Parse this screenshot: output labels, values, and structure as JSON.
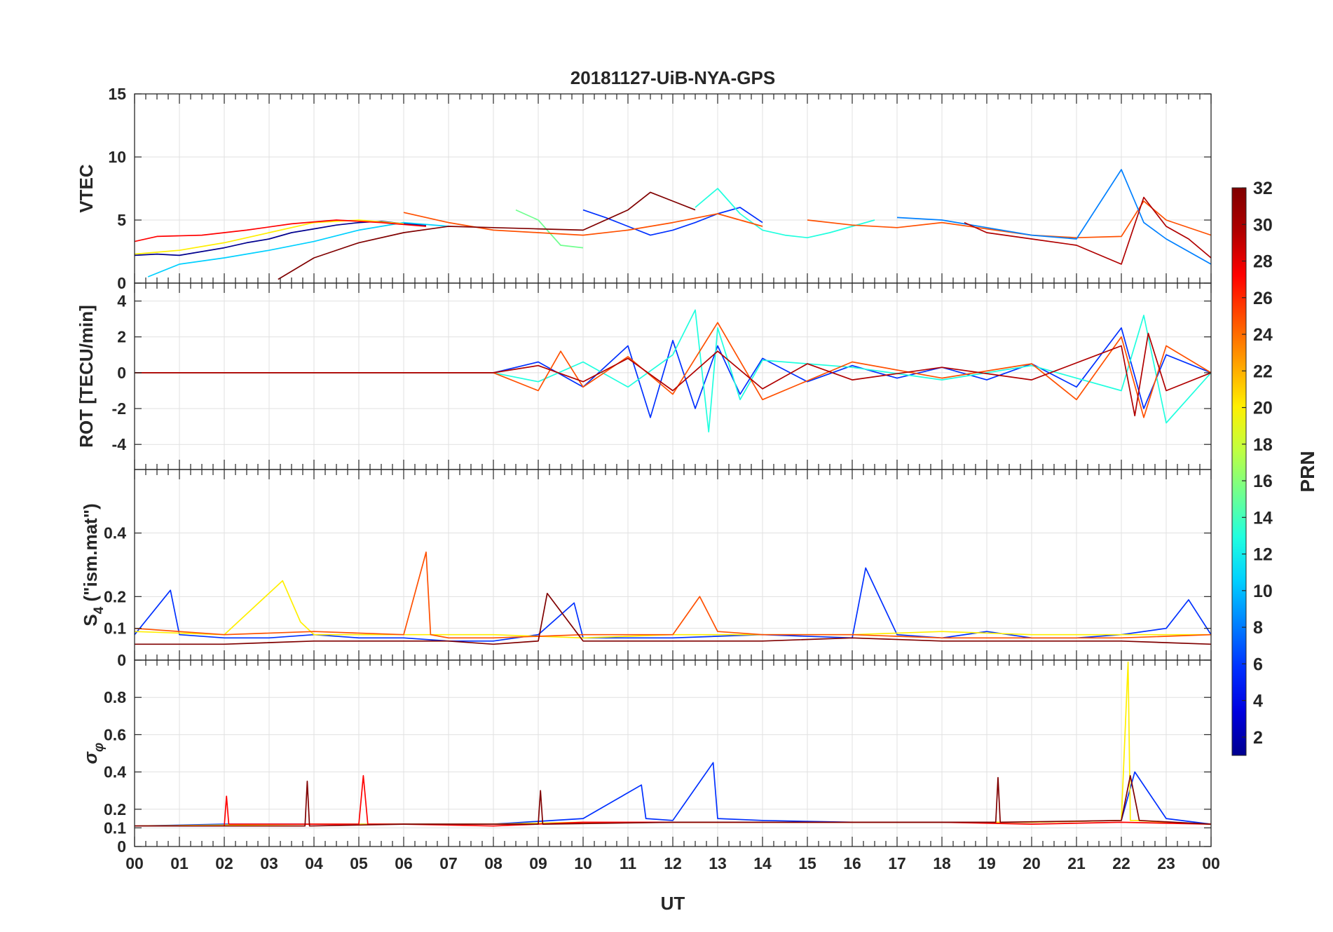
{
  "chart_data": {
    "type": "line",
    "title": "20181127-UiB-NYA-GPS",
    "xlabel": "UT",
    "x_tick_labels": [
      "00",
      "01",
      "02",
      "03",
      "04",
      "05",
      "06",
      "07",
      "08",
      "09",
      "10",
      "11",
      "12",
      "13",
      "14",
      "15",
      "16",
      "17",
      "18",
      "19",
      "20",
      "21",
      "22",
      "23",
      "00"
    ],
    "xlim": [
      0,
      24
    ],
    "grid": true,
    "colorbar": {
      "label": "PRN",
      "range": [
        1,
        32
      ],
      "ticks": [
        "2",
        "4",
        "6",
        "8",
        "10",
        "12",
        "14",
        "16",
        "18",
        "20",
        "22",
        "24",
        "26",
        "28",
        "30",
        "32"
      ],
      "colormap": "jet",
      "colors": [
        "#00008f",
        "#0000df",
        "#0030ff",
        "#0080ff",
        "#00d0ff",
        "#20ffdf",
        "#70ff8f",
        "#c0ff40",
        "#ffef00",
        "#ffa000",
        "#ff5000",
        "#ff0000",
        "#b00000",
        "#800000"
      ]
    },
    "subplots": [
      {
        "name": "vtec",
        "ylabel": "VTEC",
        "ylim": [
          0,
          15
        ],
        "yticks": [
          0,
          5,
          10,
          15
        ],
        "ytick_labels": [
          "0",
          "5",
          "10",
          "15"
        ],
        "series": [
          {
            "prn": 2,
            "x": [
              0,
              0.5,
              1.0,
              1.5,
              2.0,
              2.5,
              3.0,
              3.5,
              4.0,
              4.5,
              5.0,
              5.5,
              6.0,
              6.5
            ],
            "y": [
              2.2,
              2.3,
              2.2,
              2.5,
              2.8,
              3.2,
              3.5,
              4.0,
              4.3,
              4.6,
              4.8,
              4.9,
              4.7,
              4.6
            ]
          },
          {
            "prn": 5,
            "x": [
              10.0,
              10.5,
              11.0,
              11.5,
              12.0,
              12.5,
              13.0,
              13.5,
              14.0
            ],
            "y": [
              5.8,
              5.2,
              4.5,
              3.8,
              4.2,
              4.8,
              5.5,
              6.0,
              4.8
            ]
          },
          {
            "prn": 10,
            "x": [
              0.3,
              1.0,
              2.0,
              3.0,
              4.0,
              5.0,
              6.0,
              7.0
            ],
            "y": [
              0.5,
              1.5,
              2.0,
              2.6,
              3.3,
              4.2,
              4.8,
              4.5
            ]
          },
          {
            "prn": 12,
            "x": [
              12.5,
              13.0,
              13.5,
              14.0,
              14.5,
              15.0,
              15.5,
              16.0,
              16.5
            ],
            "y": [
              6.0,
              7.5,
              5.5,
              4.2,
              3.8,
              3.6,
              4.0,
              4.5,
              5.0
            ]
          },
          {
            "prn": 16,
            "x": [
              8.5,
              9.0,
              9.5,
              10.0
            ],
            "y": [
              5.8,
              5.0,
              3.0,
              2.8
            ]
          },
          {
            "prn": 20,
            "x": [
              0,
              1,
              2,
              3,
              4,
              5,
              6
            ],
            "y": [
              2.3,
              2.6,
              3.2,
              4.0,
              4.8,
              5.0,
              4.7
            ]
          },
          {
            "prn": 24,
            "x": [
              6,
              7,
              8,
              9,
              10,
              11,
              12,
              13,
              14
            ],
            "y": [
              5.6,
              4.8,
              4.2,
              4.0,
              3.8,
              4.2,
              4.8,
              5.5,
              4.5
            ]
          },
          {
            "prn": 28,
            "x": [
              0,
              0.5,
              1.5,
              2.5,
              3.5,
              4.5,
              5.5,
              6.5
            ],
            "y": [
              3.3,
              3.7,
              3.8,
              4.2,
              4.7,
              5.0,
              4.8,
              4.5
            ]
          },
          {
            "prn": 31,
            "x": [
              3.2,
              4,
              5,
              6,
              7,
              8,
              9,
              10,
              11,
              11.5,
              12,
              12.5
            ],
            "y": [
              0.3,
              2.0,
              3.2,
              4.0,
              4.5,
              4.4,
              4.3,
              4.2,
              5.8,
              7.2,
              6.5,
              5.8
            ]
          },
          {
            "prn": 26,
            "x": [
              15,
              16,
              17,
              18,
              19,
              20,
              21,
              22,
              22.5,
              23,
              24
            ],
            "y": [
              5.0,
              4.6,
              4.4,
              4.8,
              4.3,
              3.8,
              3.6,
              3.7,
              6.5,
              5.0,
              3.8
            ]
          },
          {
            "prn": 8,
            "x": [
              17,
              18,
              19,
              20,
              21,
              22,
              22.5,
              23,
              24
            ],
            "y": [
              5.2,
              5.0,
              4.4,
              3.8,
              3.5,
              9.0,
              4.8,
              3.5,
              1.5
            ]
          },
          {
            "prn": 30,
            "x": [
              18.5,
              19,
              20,
              21,
              22,
              22.5,
              23,
              23.5,
              24
            ],
            "y": [
              4.8,
              4.0,
              3.5,
              3.0,
              1.5,
              6.8,
              4.5,
              3.5,
              2.0
            ]
          }
        ]
      },
      {
        "name": "rot",
        "ylabel": "ROT [TECU/min]",
        "ylim": [
          -5.4,
          5.0
        ],
        "yticks": [
          -4,
          -2,
          0,
          2,
          4
        ],
        "ytick_labels": [
          "-4",
          "-2",
          "0",
          "2",
          "4"
        ],
        "series": [
          {
            "prn": 5,
            "x": [
              0,
              4,
              8,
              9,
              10,
              11,
              11.5,
              12,
              12.5,
              13,
              13.5,
              14,
              15,
              16,
              17,
              18,
              19,
              20,
              21,
              22,
              22.5,
              23,
              24
            ],
            "y": [
              0,
              0,
              0,
              0.6,
              -0.8,
              1.5,
              -2.5,
              1.8,
              -2.0,
              1.5,
              -1.2,
              0.8,
              -0.5,
              0.4,
              -0.3,
              0.3,
              -0.4,
              0.5,
              -0.8,
              2.5,
              -2.0,
              1.0,
              0
            ]
          },
          {
            "prn": 14,
            "x": [
              0,
              4,
              8,
              9,
              10,
              11,
              12,
              12.5,
              12.8,
              13,
              13.5,
              14,
              16,
              18,
              20,
              22,
              22.5,
              23,
              24
            ],
            "y": [
              0,
              0,
              0,
              -0.5,
              0.6,
              -0.8,
              1.0,
              3.5,
              -3.3,
              2.5,
              -1.5,
              0.7,
              0.3,
              -0.4,
              0.4,
              -1.0,
              3.2,
              -2.8,
              0
            ]
          },
          {
            "prn": 24,
            "x": [
              0,
              4,
              8,
              9,
              9.5,
              10,
              11,
              12,
              13,
              14,
              16,
              18,
              20,
              21,
              22,
              22.5,
              23,
              24
            ],
            "y": [
              0,
              0,
              0,
              -1.0,
              1.2,
              -0.8,
              0.9,
              -1.2,
              2.8,
              -1.5,
              0.6,
              -0.3,
              0.5,
              -1.5,
              2.0,
              -2.5,
              1.5,
              0
            ]
          },
          {
            "prn": 30,
            "x": [
              0,
              4,
              8,
              9,
              10,
              11,
              12,
              13,
              14,
              15,
              16,
              18,
              20,
              22,
              22.3,
              22.6,
              23,
              24
            ],
            "y": [
              0,
              0,
              0,
              0.4,
              -0.5,
              0.8,
              -1.0,
              1.2,
              -0.9,
              0.5,
              -0.4,
              0.3,
              -0.4,
              1.5,
              -2.4,
              2.2,
              -1.0,
              0
            ]
          }
        ]
      },
      {
        "name": "s4",
        "ylabel": "S4 (\"ism.mat\")",
        "ylabel_main": "S",
        "ylabel_sub": "4",
        "ylabel_rest": " (\"ism.mat\")",
        "ylim": [
          0,
          0.6
        ],
        "yticks": [
          0,
          0.1,
          0.2,
          0.4
        ],
        "ytick_labels": [
          "0",
          "0.1",
          "0.2",
          "0.4"
        ],
        "series": [
          {
            "prn": 6,
            "x": [
              0,
              0.8,
              1,
              2,
              3,
              4,
              5,
              6,
              7,
              8,
              9,
              9.8,
              10,
              12,
              14,
              16,
              16.3,
              17,
              18,
              19,
              20,
              21,
              22,
              23,
              23.5,
              24
            ],
            "y": [
              0.08,
              0.22,
              0.08,
              0.07,
              0.07,
              0.08,
              0.07,
              0.07,
              0.06,
              0.06,
              0.08,
              0.18,
              0.07,
              0.07,
              0.08,
              0.07,
              0.29,
              0.08,
              0.07,
              0.09,
              0.07,
              0.07,
              0.08,
              0.1,
              0.19,
              0.08
            ]
          },
          {
            "prn": 20,
            "x": [
              0,
              2,
              3.3,
              3.7,
              4,
              6,
              8,
              10,
              12,
              14,
              16,
              18,
              20,
              22,
              24
            ],
            "y": [
              0.09,
              0.08,
              0.25,
              0.12,
              0.08,
              0.08,
              0.08,
              0.07,
              0.08,
              0.08,
              0.08,
              0.09,
              0.08,
              0.08,
              0.08
            ]
          },
          {
            "prn": 24,
            "x": [
              0,
              2,
              4,
              6,
              6.5,
              6.6,
              7,
              8,
              10,
              12,
              12.6,
              13,
              14,
              16,
              18,
              20,
              22,
              24
            ],
            "y": [
              0.1,
              0.08,
              0.09,
              0.08,
              0.34,
              0.08,
              0.07,
              0.07,
              0.08,
              0.08,
              0.2,
              0.09,
              0.08,
              0.08,
              0.07,
              0.07,
              0.07,
              0.08
            ]
          },
          {
            "prn": 31,
            "x": [
              0,
              2,
              4,
              6,
              7,
              8,
              9,
              9.2,
              10,
              12,
              14,
              16,
              18,
              20,
              22,
              24
            ],
            "y": [
              0.05,
              0.05,
              0.06,
              0.06,
              0.06,
              0.05,
              0.06,
              0.21,
              0.06,
              0.06,
              0.06,
              0.07,
              0.06,
              0.06,
              0.06,
              0.05
            ]
          }
        ]
      },
      {
        "name": "sigma_phi",
        "ylabel": "σφ",
        "ylabel_main": "σ",
        "ylabel_sub": "φ",
        "ylim": [
          0,
          1.0
        ],
        "yticks": [
          0,
          0.1,
          0.2,
          0.4,
          0.6,
          0.8
        ],
        "ytick_labels": [
          "0",
          "0.1",
          "0.2",
          "0.4",
          "0.6",
          "0.8"
        ],
        "series": [
          {
            "prn": 6,
            "x": [
              0,
              2,
              4,
              6,
              8,
              10,
              11.3,
              11.4,
              12,
              12.9,
              13,
              14,
              16,
              18,
              20,
              22,
              22.3,
              23,
              24
            ],
            "y": [
              0.11,
              0.12,
              0.12,
              0.12,
              0.12,
              0.15,
              0.33,
              0.15,
              0.14,
              0.45,
              0.15,
              0.14,
              0.13,
              0.13,
              0.13,
              0.14,
              0.4,
              0.15,
              0.12
            ]
          },
          {
            "prn": 19,
            "x": [
              0,
              4,
              8,
              10,
              12,
              14,
              16,
              18,
              20,
              22,
              22.15,
              22.2,
              22.3,
              23,
              24
            ],
            "y": [
              0.11,
              0.12,
              0.12,
              0.13,
              0.13,
              0.13,
              0.13,
              0.13,
              0.13,
              0.14,
              0.99,
              0.14,
              0.14,
              0.13,
              0.12
            ]
          },
          {
            "prn": 28,
            "x": [
              0,
              2,
              2.05,
              2.1,
              4,
              5,
              5.1,
              5.2,
              6,
              8,
              10,
              12,
              14,
              16,
              18,
              20,
              22,
              24
            ],
            "y": [
              0.11,
              0.11,
              0.27,
              0.12,
              0.12,
              0.12,
              0.38,
              0.12,
              0.12,
              0.11,
              0.13,
              0.13,
              0.13,
              0.13,
              0.13,
              0.12,
              0.13,
              0.12
            ]
          },
          {
            "prn": 31,
            "x": [
              0,
              3.8,
              3.85,
              3.9,
              6,
              9,
              9.05,
              9.1,
              12,
              16,
              19.2,
              19.25,
              19.3,
              22,
              22.2,
              22.4,
              24
            ],
            "y": [
              0.11,
              0.11,
              0.35,
              0.11,
              0.12,
              0.12,
              0.3,
              0.12,
              0.13,
              0.13,
              0.13,
              0.37,
              0.13,
              0.14,
              0.38,
              0.14,
              0.12
            ]
          }
        ]
      }
    ]
  }
}
